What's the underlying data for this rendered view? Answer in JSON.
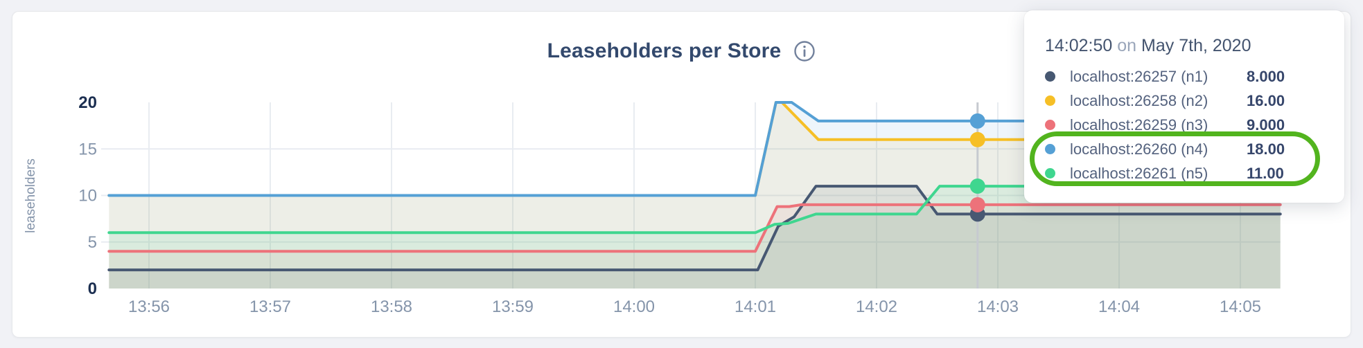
{
  "panel": {
    "title": "Leaseholders per Store"
  },
  "chart_data": {
    "type": "line",
    "title": "Leaseholders per Store",
    "xlabel": "",
    "ylabel": "leaseholders",
    "ylim": [
      0,
      20
    ],
    "xlim_minutes_after_1300": [
      55.67,
      65.33
    ],
    "grid": true,
    "legend_position": "hover-tooltip",
    "y_ticks": [
      0,
      5,
      10,
      15,
      20
    ],
    "x_ticks": [
      {
        "t": 56,
        "label": "13:56"
      },
      {
        "t": 57,
        "label": "13:57"
      },
      {
        "t": 58,
        "label": "13:58"
      },
      {
        "t": 59,
        "label": "13:59"
      },
      {
        "t": 60,
        "label": "14:00"
      },
      {
        "t": 61,
        "label": "14:01"
      },
      {
        "t": 62,
        "label": "14:02"
      },
      {
        "t": 63,
        "label": "14:03"
      },
      {
        "t": 64,
        "label": "14:04"
      },
      {
        "t": 65,
        "label": "14:05"
      }
    ],
    "series": [
      {
        "name": "localhost:26257 (n1)",
        "color": "#475872",
        "points": [
          [
            55.67,
            2
          ],
          [
            61.02,
            2
          ],
          [
            61.19,
            6.7
          ],
          [
            61.32,
            7.7
          ],
          [
            61.5,
            11
          ],
          [
            62.33,
            11
          ],
          [
            62.5,
            8
          ],
          [
            65.33,
            8
          ]
        ]
      },
      {
        "name": "localhost:26258 (n2)",
        "color": "#f6bf26",
        "points": [
          [
            55.67,
            10
          ],
          [
            61.0,
            10
          ],
          [
            61.17,
            20
          ],
          [
            61.22,
            20
          ],
          [
            61.52,
            16
          ],
          [
            65.33,
            16
          ]
        ]
      },
      {
        "name": "localhost:26259 (n3)",
        "color": "#ed727a",
        "points": [
          [
            55.67,
            4
          ],
          [
            61.0,
            4
          ],
          [
            61.18,
            8.8
          ],
          [
            61.28,
            8.8
          ],
          [
            61.38,
            9
          ],
          [
            65.33,
            9
          ]
        ]
      },
      {
        "name": "localhost:26260 (n4)",
        "color": "#55a0d5",
        "points": [
          [
            55.67,
            10
          ],
          [
            61.0,
            10
          ],
          [
            61.17,
            20
          ],
          [
            61.3,
            20
          ],
          [
            61.52,
            18
          ],
          [
            65.33,
            18
          ]
        ]
      },
      {
        "name": "localhost:26261 (n5)",
        "color": "#3fd68f",
        "points": [
          [
            55.67,
            6
          ],
          [
            61.0,
            6
          ],
          [
            61.16,
            6.9
          ],
          [
            61.27,
            7.0
          ],
          [
            61.5,
            8
          ],
          [
            62.33,
            8
          ],
          [
            62.52,
            11
          ],
          [
            65.33,
            11
          ]
        ]
      }
    ],
    "hover": {
      "t": 62.833,
      "time_label": "14:02:50",
      "values": [
        8,
        16,
        9,
        18,
        11
      ]
    }
  },
  "tooltip": {
    "time": "14:02:50",
    "conjunction": "on",
    "date": "May 7th, 2020",
    "rows": [
      {
        "label": "localhost:26257 (n1)",
        "value": "8.000",
        "color": "#475872",
        "highlighted": false
      },
      {
        "label": "localhost:26258 (n2)",
        "value": "16.00",
        "color": "#f6bf26",
        "highlighted": false
      },
      {
        "label": "localhost:26259 (n3)",
        "value": "9.000",
        "color": "#ed727a",
        "highlighted": false
      },
      {
        "label": "localhost:26260 (n4)",
        "value": "18.00",
        "color": "#55a0d5",
        "highlighted": true
      },
      {
        "label": "localhost:26261 (n5)",
        "value": "11.00",
        "color": "#3fd68f",
        "highlighted": true
      }
    ]
  },
  "annotation": {
    "shape": "rounded-ring",
    "color": "#52b41e",
    "highlights": [
      "localhost:26260 (n4)",
      "localhost:26261 (n5)"
    ]
  },
  "colors": {
    "title": "#33496d",
    "tick": "#8494aa",
    "tick_strong": "#1c2f51",
    "grid": "#e8ecf1",
    "hover_line": "#c6cad0",
    "fill_opacity": 0.1
  }
}
